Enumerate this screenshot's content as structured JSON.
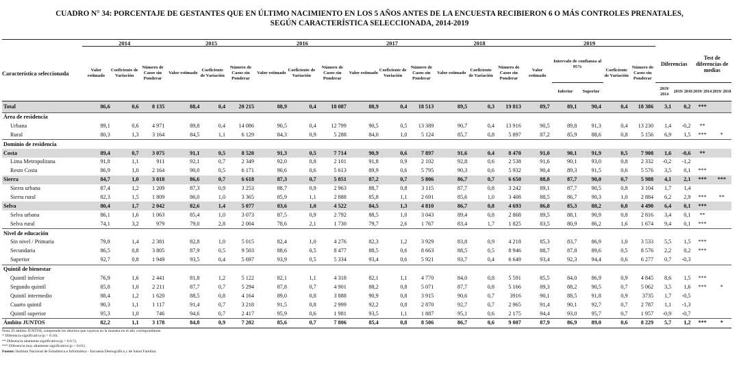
{
  "title_line1": "CUADRO N° 34: PORCENTAJE DE GESTANTES QUE EN ÚLTIMO NACIMIENTO EN LOS 5 AÑOS ANTES DE LA ENCUESTA RECIBIERON 6 O MÁS CONTROLES PRENATALES,",
  "title_line2": "SEGÚN CARACTERÍSTICA SELECCIONADA, 2014-2019",
  "header": {
    "caracteristica": "Característica seleccionada",
    "years": [
      "2014",
      "2015",
      "2016",
      "2017",
      "2018",
      "2019"
    ],
    "valor": "Valor estimado",
    "coef": "Coeficiente de Variación",
    "numero": "Número de Casos sin Ponderar",
    "intervalo": "Intervalo de confianza al 95%",
    "inferior": "Inferior",
    "superior": "Superior",
    "diferencias": "Diferencias",
    "test": "Test de diferencias de medias",
    "d1": "2019/ 2014",
    "d2": "2019/ 2018",
    "t1": "2019/ 2014",
    "t2": "2019/ 2018"
  },
  "rows": [
    {
      "type": "total",
      "label": "Total",
      "v": [
        "86,6",
        "0,6",
        "8 135",
        "88,4",
        "0,4",
        "20 215",
        "88,9",
        "0,4",
        "18 087",
        "88,9",
        "0,4",
        "18 513",
        "89,5",
        "0,3",
        "19 813",
        "89,7",
        "89,1",
        "90,4",
        "0,4",
        "18 386",
        "3,1",
        "0,2",
        "***",
        ""
      ]
    },
    {
      "type": "sec",
      "label": "Área de residencia"
    },
    {
      "type": "ind",
      "label": "Urbana",
      "v": [
        "89,1",
        "0,6",
        "4 971",
        "89,8",
        "0,4",
        "14 086",
        "90,5",
        "0,4",
        "12 799",
        "90,5",
        "0,5",
        "13 389",
        "90,7",
        "0,4",
        "13 916",
        "90,5",
        "89,8",
        "91,3",
        "0,4",
        "13 230",
        "1,4",
        "-0,2",
        "**",
        ""
      ]
    },
    {
      "type": "ind",
      "label": "Rural",
      "v": [
        "80,3",
        "1,3",
        "3 164",
        "84,5",
        "1,1",
        "6 129",
        "84,3",
        "0,9",
        "5 288",
        "84,0",
        "1,0",
        "5 124",
        "85,7",
        "0,8",
        "5 897",
        "87,2",
        "85,9",
        "88,6",
        "0,8",
        "5 156",
        "6,9",
        "1,5",
        "***",
        "*"
      ]
    },
    {
      "type": "sec",
      "label": "Dominio de residencia"
    },
    {
      "type": "b",
      "label": "Costa",
      "v": [
        "89,4",
        "0,7",
        "3 075",
        "91,1",
        "0,5",
        "8 520",
        "91,3",
        "0,5",
        "7 714",
        "90,9",
        "0,6",
        "7 897",
        "91,6",
        "0,4",
        "8 470",
        "91,0",
        "90,1",
        "91,9",
        "0,5",
        "7 908",
        "1,6",
        "-0,6",
        "**",
        ""
      ]
    },
    {
      "type": "ind",
      "label": "Lima Metropolitana",
      "v": [
        "91,8",
        "1,1",
        "911",
        "92,1",
        "0,7",
        "2 349",
        "92,0",
        "0,8",
        "2 101",
        "91,8",
        "0,9",
        "2 102",
        "92,8",
        "0,6",
        "2 538",
        "91,6",
        "90,1",
        "93,0",
        "0,8",
        "2 332",
        "-0,2",
        "-1,2",
        "",
        ""
      ]
    },
    {
      "type": "ind",
      "label": "Resto Costa",
      "v": [
        "86,9",
        "1,0",
        "2 164",
        "90,0",
        "0,5",
        "6 171",
        "90,6",
        "0,6",
        "5 613",
        "89,9",
        "0,6",
        "5 795",
        "90,3",
        "0,6",
        "5 932",
        "90,4",
        "89,3",
        "91,5",
        "0,6",
        "5 576",
        "3,5",
        "0,1",
        "***",
        ""
      ]
    },
    {
      "type": "b",
      "label": "Sierra",
      "v": [
        "84,7",
        "1,0",
        "3 018",
        "86,6",
        "0,7",
        "6 618",
        "87,3",
        "0,7",
        "5 851",
        "87,2",
        "0,7",
        "5 806",
        "86,7",
        "0,7",
        "6 650",
        "88,8",
        "87,7",
        "90,0",
        "0,7",
        "5 988",
        "4,1",
        "2,1",
        "***",
        "***"
      ]
    },
    {
      "type": "ind",
      "label": "Sierra urbana",
      "v": [
        "87,4",
        "1,2",
        "1 209",
        "87,3",
        "0,9",
        "3 253",
        "88,7",
        "0,9",
        "2 963",
        "88,7",
        "0,8",
        "3 115",
        "87,7",
        "0,8",
        "3 242",
        "89,1",
        "87,7",
        "90,5",
        "0,8",
        "3 104",
        "1,7",
        "1,4",
        "",
        ""
      ]
    },
    {
      "type": "ind",
      "label": "Sierra rural",
      "v": [
        "82,3",
        "1,5",
        "1 809",
        "86,0",
        "1,0",
        "3 365",
        "85,9",
        "1,1",
        "2 888",
        "85,8",
        "1,1",
        "2 691",
        "85,6",
        "1,0",
        "3 408",
        "88,5",
        "86,7",
        "90,3",
        "1,0",
        "2 884",
        "6,2",
        "2,9",
        "***",
        "**"
      ]
    },
    {
      "type": "b",
      "label": "Selva",
      "v": [
        "80,4",
        "1,7",
        "2 042",
        "82,6",
        "1,4",
        "5 077",
        "83,6",
        "1,0",
        "4 522",
        "84,5",
        "1,3",
        "4 810",
        "86,7",
        "0,8",
        "4 693",
        "86,8",
        "85,3",
        "88,2",
        "0,8",
        "4 490",
        "6,4",
        "0,1",
        "***",
        ""
      ]
    },
    {
      "type": "ind",
      "label": "Selva urbana",
      "v": [
        "86,1",
        "1,6",
        "1 063",
        "85,4",
        "1,0",
        "3 073",
        "87,5",
        "0,9",
        "2 792",
        "88,5",
        "1,0",
        "3 043",
        "89,4",
        "0,8",
        "2 868",
        "89,5",
        "88,1",
        "90,9",
        "0,8",
        "2 816",
        "3,4",
        "0,1",
        "**",
        ""
      ]
    },
    {
      "type": "ind",
      "label": "Selva rural",
      "v": [
        "74,1",
        "3,2",
        "979",
        "79,0",
        "2,8",
        "2 004",
        "78,6",
        "2,1",
        "1 730",
        "79,7",
        "2,6",
        "1 767",
        "83,4",
        "1,7",
        "1 825",
        "83,5",
        "80,9",
        "86,2",
        "1,6",
        "1 674",
        "9,4",
        "0,1",
        "***",
        ""
      ]
    },
    {
      "type": "sec",
      "label": "Nivel de educación"
    },
    {
      "type": "ind",
      "label": "Sin nivel / Primaria",
      "v": [
        "79,8",
        "1,4",
        "2 381",
        "82,8",
        "1,0",
        "5 015",
        "82,4",
        "1,0",
        "4 276",
        "82,3",
        "1,2",
        "3 929",
        "83,8",
        "0,9",
        "4 218",
        "85,3",
        "83,7",
        "86,9",
        "1,0",
        "3 533",
        "5,5",
        "1,5",
        "***",
        ""
      ]
    },
    {
      "type": "ind",
      "label": "Secundaria",
      "v": [
        "86,5",
        "0,8",
        "3 805",
        "87,9",
        "0,5",
        "9 503",
        "88,6",
        "0,5",
        "8 477",
        "88,5",
        "0,6",
        "8 663",
        "88,5",
        "0,5",
        "8 946",
        "88,7",
        "87,8",
        "89,6",
        "0,5",
        "8 576",
        "2,2",
        "0,2",
        "***",
        ""
      ]
    },
    {
      "type": "ind",
      "label": "Superior",
      "v": [
        "92,7",
        "0,8",
        "1 949",
        "93,5",
        "0,4",
        "5 697",
        "93,9",
        "0,5",
        "5 334",
        "93,4",
        "0,6",
        "5 921",
        "93,7",
        "0,4",
        "6 649",
        "93,4",
        "92,3",
        "94,4",
        "0,6",
        "6 277",
        "0,7",
        "-0,3",
        "",
        ""
      ]
    },
    {
      "type": "sec",
      "label": "Quintil de bienestar"
    },
    {
      "type": "ind",
      "label": "Quintil inferior",
      "v": [
        "76,9",
        "1,6",
        "2 441",
        "81,8",
        "1,2",
        "5 122",
        "82,1",
        "1,1",
        "4 318",
        "82,1",
        "1,1",
        "4 770",
        "84,0",
        "0,8",
        "5 591",
        "85,5",
        "84,0",
        "86,9",
        "0,9",
        "4 845",
        "8,6",
        "1,5",
        "***",
        ""
      ]
    },
    {
      "type": "ind",
      "label": "Segundo quintil",
      "v": [
        "85,8",
        "1,0",
        "2 211",
        "87,7",
        "0,7",
        "5 294",
        "87,8",
        "0,7",
        "4 901",
        "88,2",
        "0,8",
        "5 071",
        "87,7",
        "0,8",
        "5 166",
        "89,3",
        "88,2",
        "90,5",
        "0,7",
        "5 062",
        "3,5",
        "1,6",
        "***",
        "*"
      ]
    },
    {
      "type": "ind",
      "label": "Quintil intermedio",
      "v": [
        "88,4",
        "1,2",
        "1 620",
        "88,5",
        "0,8",
        "4 164",
        "89,0",
        "0,8",
        "3 888",
        "90,9",
        "0,8",
        "3 915",
        "90,6",
        "0,7",
        "3916",
        "90,1",
        "88,5",
        "91,8",
        "0,9",
        "3735",
        "1,7",
        "-0,5",
        "",
        ""
      ]
    },
    {
      "type": "ind",
      "label": "Cuarto quintil",
      "v": [
        "90,3",
        "1,1",
        "1 117",
        "91,4",
        "0,7",
        "3 218",
        "91,5",
        "0,8",
        "2 999",
        "92,2",
        "0,8",
        "2 870",
        "92,7",
        "0,7",
        "2 965",
        "91,4",
        "90,1",
        "92,7",
        "0,7",
        "2 787",
        "1,1",
        "-1,3",
        "",
        ""
      ]
    },
    {
      "type": "ind",
      "label": "Quintil superior",
      "v": [
        "95,3",
        "1,0",
        "746",
        "94,6",
        "0,7",
        "2 417",
        "95,9",
        "0,6",
        "1 981",
        "93,5",
        "1,1",
        "1 887",
        "95,1",
        "0,6",
        "2 175",
        "94,4",
        "93,0",
        "95,7",
        "0,7",
        "1 957",
        "-0,9",
        "-0,7",
        "",
        ""
      ]
    },
    {
      "type": "ambito",
      "label": "Ámbito JUNTOS",
      "v": [
        "82,2",
        "1,1",
        "3 178",
        "84,8",
        "0,9",
        "7 202",
        "85,6",
        "0,7",
        "7 806",
        "85,4",
        "0,8",
        "8 506",
        "86,7",
        "0,6",
        "9 007",
        "87,9",
        "86,9",
        "89,0",
        "0,6",
        "8 229",
        "5,7",
        "1,2",
        "***",
        "*"
      ]
    }
  ],
  "notes": [
    "Nota: El ámbito JUNTOS, comprende los distritos que cayeron en la muestra en el año correspondiente.",
    "*   Diferencia significativa (p < 0.10).",
    "**  Diferencia altamente significativa (p < 0.0 5).",
    "*** Diferencia muy altamente significativa (p < 0.01)."
  ],
  "fuente_label": "Fuente:",
  "fuente": "Instituto Nacional de Estadística e Informática - Encuesta Demográfica y de Salud Familiar."
}
